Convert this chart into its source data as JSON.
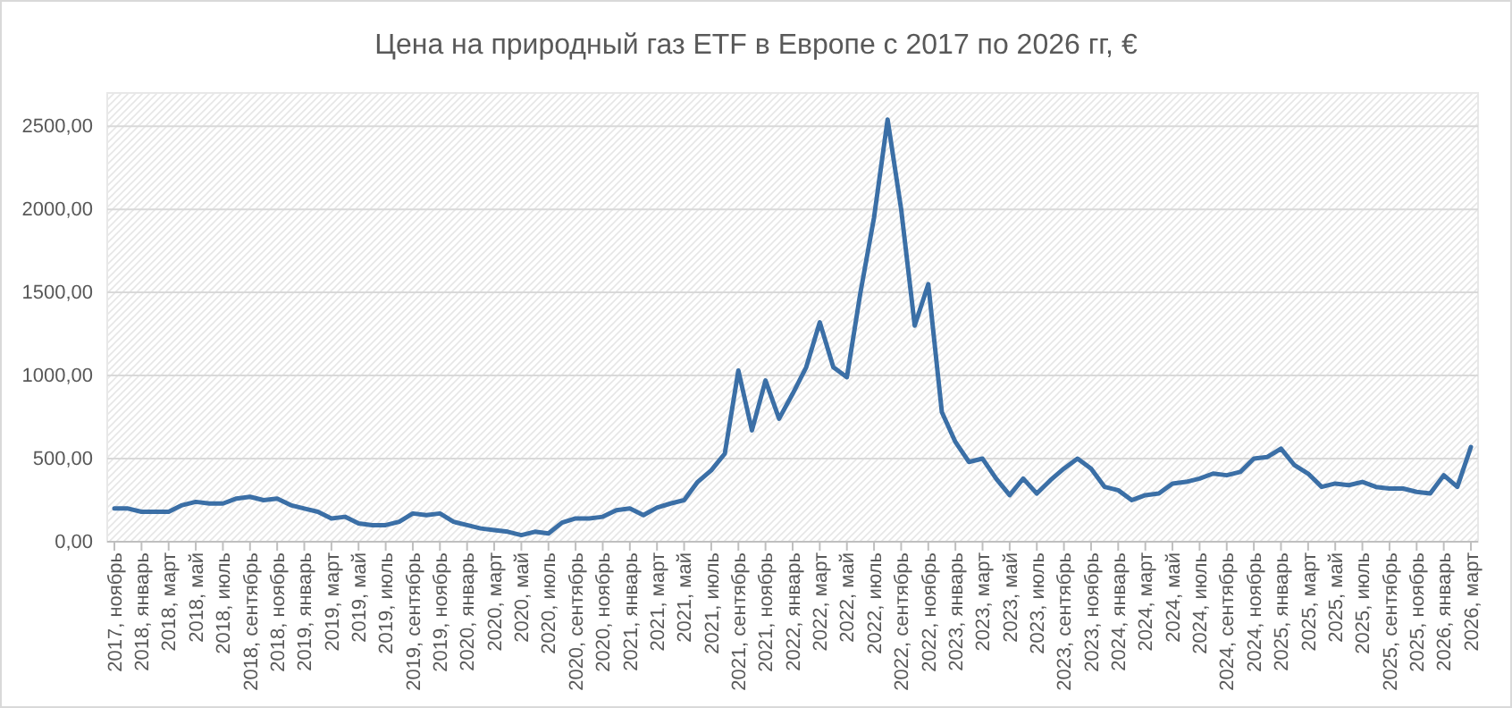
{
  "chart_data": {
    "type": "line",
    "title": "Цена на природный газ ETF в Европе с 2017 по 2026 гг, €",
    "categories": [
      "2017, ноябрь",
      null,
      "2018, январь",
      null,
      "2018, март",
      null,
      "2018, май",
      null,
      "2018, июль",
      null,
      "2018, сентябрь",
      null,
      "2018, ноябрь",
      null,
      "2019, январь",
      null,
      "2019, март",
      null,
      "2019, май",
      null,
      "2019, июль",
      null,
      "2019, сентябрь",
      null,
      "2019, ноябрь",
      null,
      "2020, январь",
      null,
      "2020, март",
      null,
      "2020, май",
      null,
      "2020, июль",
      null,
      "2020, сентябрь",
      null,
      "2020, ноябрь",
      null,
      "2021, январь",
      null,
      "2021, март",
      null,
      "2021, май",
      null,
      "2021, июль",
      null,
      "2021, сентябрь",
      null,
      "2021, ноябрь",
      null,
      "2022, январь",
      null,
      "2022, март",
      null,
      "2022, май",
      null,
      "2022, июль",
      null,
      "2022, сентябрь",
      null,
      "2022, ноябрь",
      null,
      "2023, январь",
      null,
      "2023, март",
      null,
      "2023, май",
      null,
      "2023, июль",
      null,
      "2023, сентябрь",
      null,
      "2023, ноябрь",
      null,
      "2024, январь",
      null,
      "2024, март",
      null,
      "2024, май",
      null,
      "2024, июль",
      null,
      "2024, сентябрь",
      null,
      "2024, ноябрь",
      null,
      "2025, январь",
      null,
      "2025, март",
      null,
      "2025, май",
      null,
      "2025, июль",
      null,
      "2025, сентябрь",
      null,
      "2025, ноябрь",
      null,
      "2026, январь",
      null,
      "2026, март"
    ],
    "series": [
      {
        "color": "#3b6fa6",
        "values": [
          200,
          200,
          180,
          180,
          180,
          220,
          240,
          230,
          230,
          260,
          270,
          250,
          260,
          220,
          200,
          180,
          140,
          150,
          110,
          100,
          100,
          120,
          170,
          160,
          170,
          120,
          100,
          80,
          70,
          60,
          40,
          60,
          50,
          115,
          140,
          140,
          150,
          190,
          200,
          160,
          205,
          230,
          250,
          360,
          430,
          530,
          1030,
          670,
          970,
          740,
          890,
          1050,
          1320,
          1050,
          990,
          1500,
          1950,
          2540,
          2000,
          1300,
          1550,
          780,
          600,
          480,
          500,
          380,
          280,
          380,
          290,
          370,
          440,
          500,
          440,
          330,
          310,
          250,
          280,
          290,
          350,
          360,
          380,
          410,
          400,
          420,
          500,
          510,
          560,
          460,
          410,
          330,
          350,
          340,
          360,
          330,
          320,
          320,
          300,
          290,
          400,
          330,
          570
        ]
      }
    ],
    "ylim": [
      0,
      2700
    ],
    "yticks": [
      {
        "value": 0,
        "label": "0,00"
      },
      {
        "value": 500,
        "label": "500,00"
      },
      {
        "value": 1000,
        "label": "1000,00"
      },
      {
        "value": 1500,
        "label": "1500,00"
      },
      {
        "value": 2000,
        "label": "2000,00"
      },
      {
        "value": 2500,
        "label": "2500,00"
      }
    ],
    "grid": "y"
  }
}
